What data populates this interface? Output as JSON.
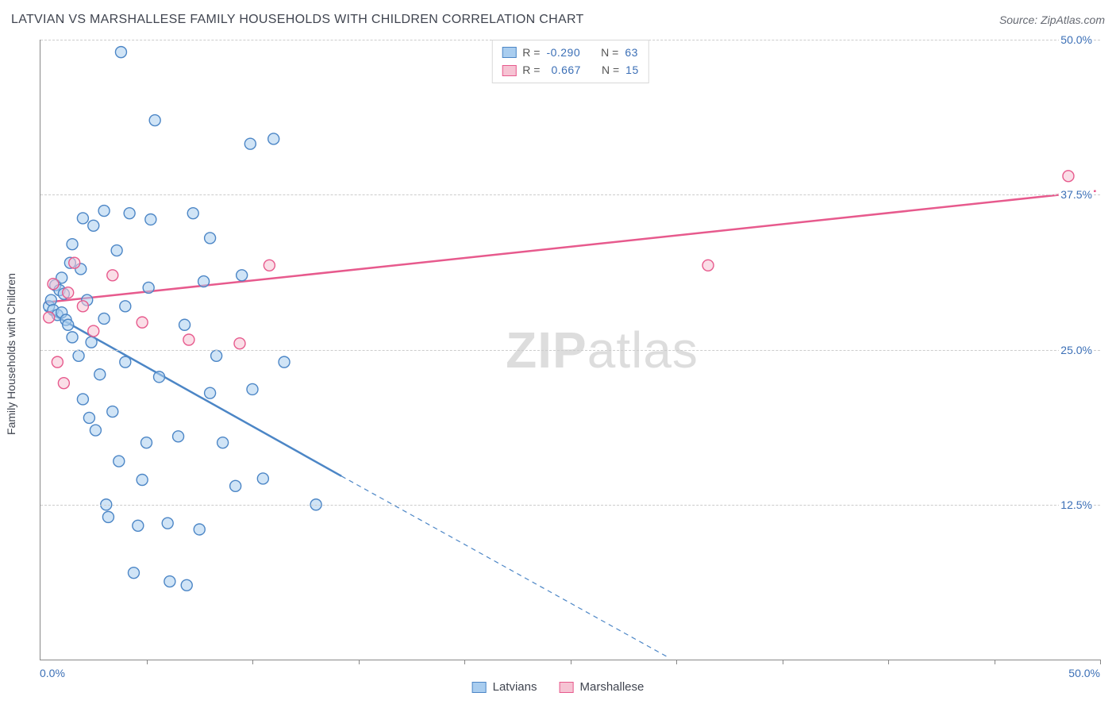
{
  "header": {
    "title": "LATVIAN VS MARSHALLESE FAMILY HOUSEHOLDS WITH CHILDREN CORRELATION CHART",
    "source": "Source: ZipAtlas.com"
  },
  "ylabel": "Family Households with Children",
  "watermark": {
    "bold": "ZIP",
    "rest": "atlas"
  },
  "chart": {
    "type": "scatter",
    "xlim": [
      0,
      50
    ],
    "ylim": [
      0,
      50
    ],
    "x_tick_step": 5,
    "x_start_label": "0.0%",
    "x_end_label": "50.0%",
    "y_ticks": [
      {
        "v": 12.5,
        "label": "12.5%"
      },
      {
        "v": 25.0,
        "label": "25.0%"
      },
      {
        "v": 37.5,
        "label": "37.5%"
      },
      {
        "v": 50.0,
        "label": "50.0%"
      }
    ],
    "background_color": "#ffffff",
    "grid_color": "#cccccc",
    "axis_color": "#888888",
    "marker_radius": 7,
    "marker_opacity": 0.55,
    "series": {
      "latvians": {
        "label": "Latvians",
        "fill": "#a9cdef",
        "stroke": "#4c86c6",
        "marker_stroke": "#4c86c6",
        "r_value": "-0.290",
        "n_value": "63",
        "regression": {
          "solid": {
            "x1": 0.2,
            "y1": 28.2,
            "x2": 14.2,
            "y2": 14.8
          },
          "dashed": {
            "x1": 14.2,
            "y1": 14.8,
            "x2": 29.6,
            "y2": 0.2
          },
          "width": 2.5
        },
        "points": [
          [
            0.4,
            28.5
          ],
          [
            0.5,
            29.0
          ],
          [
            0.6,
            28.2
          ],
          [
            0.7,
            30.2
          ],
          [
            0.8,
            27.8
          ],
          [
            0.9,
            29.8
          ],
          [
            1.0,
            28.0
          ],
          [
            1.0,
            30.8
          ],
          [
            1.1,
            29.5
          ],
          [
            1.2,
            27.4
          ],
          [
            1.3,
            27.0
          ],
          [
            1.4,
            32.0
          ],
          [
            1.5,
            26.0
          ],
          [
            1.5,
            33.5
          ],
          [
            1.8,
            24.5
          ],
          [
            1.9,
            31.5
          ],
          [
            2.0,
            21.0
          ],
          [
            2.0,
            35.6
          ],
          [
            2.2,
            29.0
          ],
          [
            2.3,
            19.5
          ],
          [
            2.4,
            25.6
          ],
          [
            2.5,
            35.0
          ],
          [
            2.6,
            18.5
          ],
          [
            2.8,
            23.0
          ],
          [
            3.0,
            27.5
          ],
          [
            3.0,
            36.2
          ],
          [
            3.1,
            12.5
          ],
          [
            3.2,
            11.5
          ],
          [
            3.4,
            20.0
          ],
          [
            3.6,
            33.0
          ],
          [
            3.7,
            16.0
          ],
          [
            3.8,
            49.0
          ],
          [
            4.0,
            24.0
          ],
          [
            4.0,
            28.5
          ],
          [
            4.2,
            36.0
          ],
          [
            4.4,
            7.0
          ],
          [
            4.6,
            10.8
          ],
          [
            4.8,
            14.5
          ],
          [
            5.0,
            17.5
          ],
          [
            5.1,
            30.0
          ],
          [
            5.2,
            35.5
          ],
          [
            5.4,
            43.5
          ],
          [
            5.6,
            22.8
          ],
          [
            6.0,
            11.0
          ],
          [
            6.1,
            6.3
          ],
          [
            6.5,
            18.0
          ],
          [
            6.8,
            27.0
          ],
          [
            6.9,
            6.0
          ],
          [
            7.2,
            36.0
          ],
          [
            7.5,
            10.5
          ],
          [
            7.7,
            30.5
          ],
          [
            8.0,
            21.5
          ],
          [
            8.3,
            24.5
          ],
          [
            8.6,
            17.5
          ],
          [
            9.2,
            14.0
          ],
          [
            9.5,
            31.0
          ],
          [
            9.9,
            41.6
          ],
          [
            10.0,
            21.8
          ],
          [
            10.5,
            14.6
          ],
          [
            11.5,
            24.0
          ],
          [
            13.0,
            12.5
          ],
          [
            11.0,
            42.0
          ],
          [
            8.0,
            34.0
          ]
        ]
      },
      "marshallese": {
        "label": "Marshallese",
        "fill": "#f6c3d3",
        "stroke": "#e75a8d",
        "marker_stroke": "#e75a8d",
        "r_value": "0.667",
        "n_value": "15",
        "regression": {
          "solid": {
            "x1": 0.2,
            "y1": 28.8,
            "x2": 49.8,
            "y2": 37.8
          },
          "width": 2.5
        },
        "points": [
          [
            0.4,
            27.6
          ],
          [
            0.6,
            30.3
          ],
          [
            0.8,
            24.0
          ],
          [
            1.1,
            22.3
          ],
          [
            1.3,
            29.6
          ],
          [
            1.6,
            32.0
          ],
          [
            2.0,
            28.5
          ],
          [
            2.5,
            26.5
          ],
          [
            3.4,
            31.0
          ],
          [
            4.8,
            27.2
          ],
          [
            7.0,
            25.8
          ],
          [
            9.4,
            25.5
          ],
          [
            10.8,
            31.8
          ],
          [
            31.5,
            31.8
          ],
          [
            48.5,
            39.0
          ]
        ]
      }
    }
  },
  "legend_top": {
    "r_label": "R =",
    "n_label": "N ="
  },
  "colors": {
    "tick_label": "#3b6fb6",
    "text": "#404550"
  }
}
